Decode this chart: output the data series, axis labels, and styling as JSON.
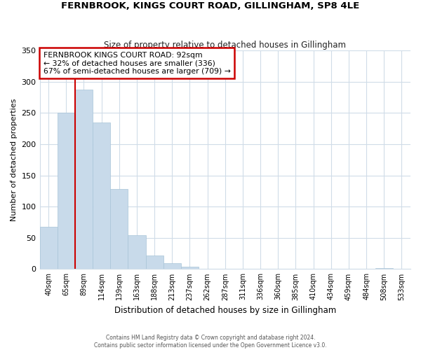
{
  "title": "FERNBROOK, KINGS COURT ROAD, GILLINGHAM, SP8 4LE",
  "subtitle": "Size of property relative to detached houses in Gillingham",
  "xlabel": "Distribution of detached houses by size in Gillingham",
  "ylabel": "Number of detached properties",
  "bar_labels": [
    "40sqm",
    "65sqm",
    "89sqm",
    "114sqm",
    "139sqm",
    "163sqm",
    "188sqm",
    "213sqm",
    "237sqm",
    "262sqm",
    "287sqm",
    "311sqm",
    "336sqm",
    "360sqm",
    "385sqm",
    "410sqm",
    "434sqm",
    "459sqm",
    "484sqm",
    "508sqm",
    "533sqm"
  ],
  "bar_values": [
    68,
    250,
    287,
    235,
    128,
    54,
    22,
    10,
    4,
    0,
    0,
    0,
    0,
    0,
    0,
    0,
    0,
    0,
    0,
    2,
    0
  ],
  "bar_color": "#c8daea",
  "bar_edge_color": "#a8c4d8",
  "vline_x": 2,
  "vline_color": "#cc0000",
  "annotation_title": "FERNBROOK KINGS COURT ROAD: 92sqm",
  "annotation_line1": "← 32% of detached houses are smaller (336)",
  "annotation_line2": "67% of semi-detached houses are larger (709) →",
  "annotation_box_color": "#ffffff",
  "annotation_box_edge": "#cc0000",
  "ylim": [
    0,
    350
  ],
  "yticks": [
    0,
    50,
    100,
    150,
    200,
    250,
    300,
    350
  ],
  "footer1": "Contains HM Land Registry data © Crown copyright and database right 2024.",
  "footer2": "Contains public sector information licensed under the Open Government Licence v3.0.",
  "bg_color": "#ffffff",
  "plot_bg_color": "#ffffff",
  "grid_color": "#d0dce8"
}
